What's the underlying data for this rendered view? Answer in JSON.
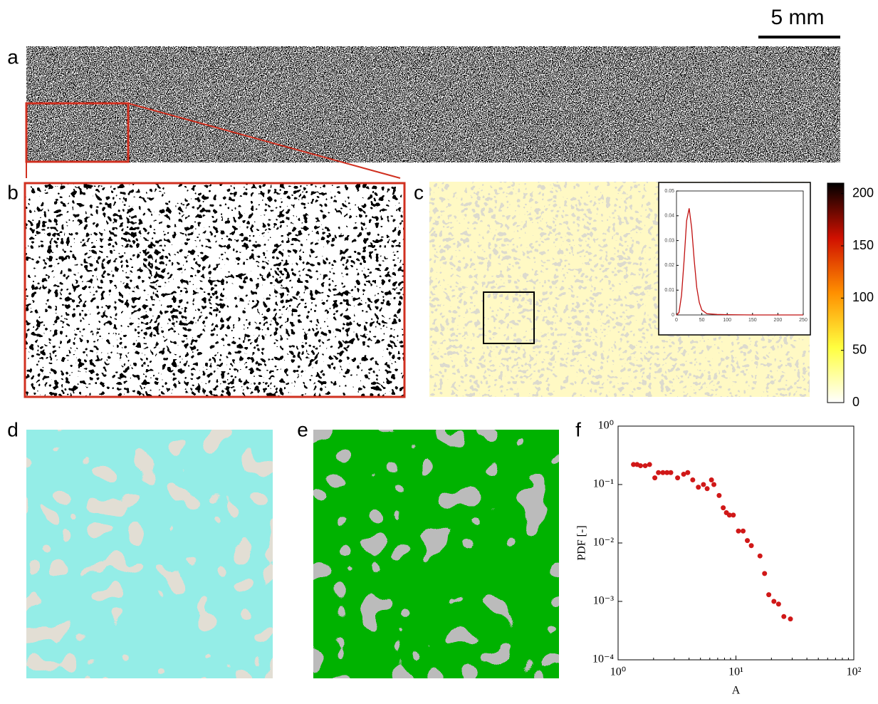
{
  "scale_bar": "5 mm",
  "panel_labels": [
    "a",
    "b",
    "c",
    "d",
    "e",
    "f"
  ],
  "chart_data": [
    {
      "type": "scatter",
      "xlabel": "A",
      "ylabel": "PDF [-]",
      "log_x": true,
      "log_y": true,
      "color": "#d01818",
      "xlim": [
        1,
        100
      ],
      "ylim": [
        0.0001,
        1
      ],
      "xticks": [
        {
          "value": 1,
          "label": "10⁰"
        },
        {
          "value": 10,
          "label": "10¹"
        },
        {
          "value": 100,
          "label": "10²"
        }
      ],
      "yticks": [
        {
          "value": 0.0001,
          "label": "10⁻⁴"
        },
        {
          "value": 0.001,
          "label": "10⁻³"
        },
        {
          "value": 0.01,
          "label": "10⁻²"
        },
        {
          "value": 0.1,
          "label": "10⁻¹"
        },
        {
          "value": 1,
          "label": "10⁰"
        }
      ],
      "x": [
        1.35,
        1.45,
        1.55,
        1.7,
        1.85,
        2.05,
        2.2,
        2.4,
        2.6,
        2.8,
        3.2,
        3.6,
        3.9,
        4.3,
        4.8,
        5.3,
        5.7,
        6.2,
        6.5,
        7.2,
        7.8,
        8.3,
        8.8,
        9.5,
        10.5,
        11.5,
        12.5,
        13.5,
        16,
        17.5,
        19,
        21,
        23,
        25.5,
        29
      ],
      "values": [
        0.22,
        0.22,
        0.21,
        0.21,
        0.22,
        0.13,
        0.16,
        0.16,
        0.16,
        0.16,
        0.13,
        0.15,
        0.16,
        0.12,
        0.09,
        0.1,
        0.085,
        0.12,
        0.1,
        0.065,
        0.04,
        0.033,
        0.03,
        0.03,
        0.016,
        0.016,
        0.011,
        0.009,
        0.006,
        0.003,
        0.0013,
        0.001,
        0.0009,
        0.00055,
        0.0005
      ]
    },
    {
      "type": "line",
      "color": "#c01010",
      "xlim": [
        0,
        250
      ],
      "ylim": [
        0,
        0.05
      ],
      "xticks": [
        0,
        50,
        100,
        150,
        200,
        250
      ],
      "yticks": [
        0,
        0.01,
        0.02,
        0.03,
        0.04,
        0.05
      ],
      "x": [
        0,
        5,
        10,
        15,
        20,
        25,
        30,
        35,
        40,
        45,
        50,
        60,
        80,
        100,
        150,
        200,
        250
      ],
      "values": [
        0,
        0.001,
        0.008,
        0.022,
        0.038,
        0.043,
        0.035,
        0.022,
        0.011,
        0.005,
        0.002,
        0.0005,
        0.0002,
        0.0001,
        0,
        0,
        0
      ]
    },
    {
      "type": "colorbar",
      "ylim": [
        0,
        210
      ],
      "yticks": [
        0,
        50,
        100,
        150,
        200
      ],
      "colors": [
        "#ffffff",
        "#ffff40",
        "#ff9000",
        "#d01000",
        "#000000"
      ]
    }
  ]
}
